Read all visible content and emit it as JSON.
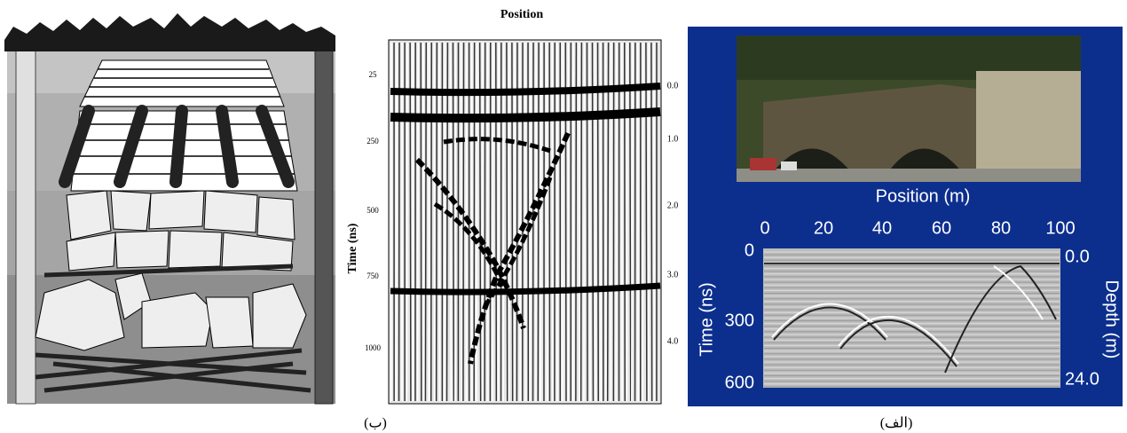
{
  "panel_left": {
    "caption": "(ب)"
  },
  "panel_middle": {
    "x_label": "Position",
    "y_label": "Time (ns)",
    "time_ticks": [
      "25",
      "250",
      "500",
      "750",
      "1000"
    ],
    "depth_ticks": [
      "0.0",
      "1.0",
      "2.0",
      "3.0",
      "4.0"
    ]
  },
  "panel_right": {
    "caption": "(الف)",
    "x_label": "Position (m)",
    "x_ticks": [
      "0",
      "20",
      "40",
      "60",
      "80",
      "100"
    ],
    "y_label": "Time (ns)",
    "y_ticks": [
      "0",
      "300",
      "600"
    ],
    "y2_label": "Depth (m)",
    "y2_ticks": [
      "0.0",
      "24.0"
    ]
  }
}
